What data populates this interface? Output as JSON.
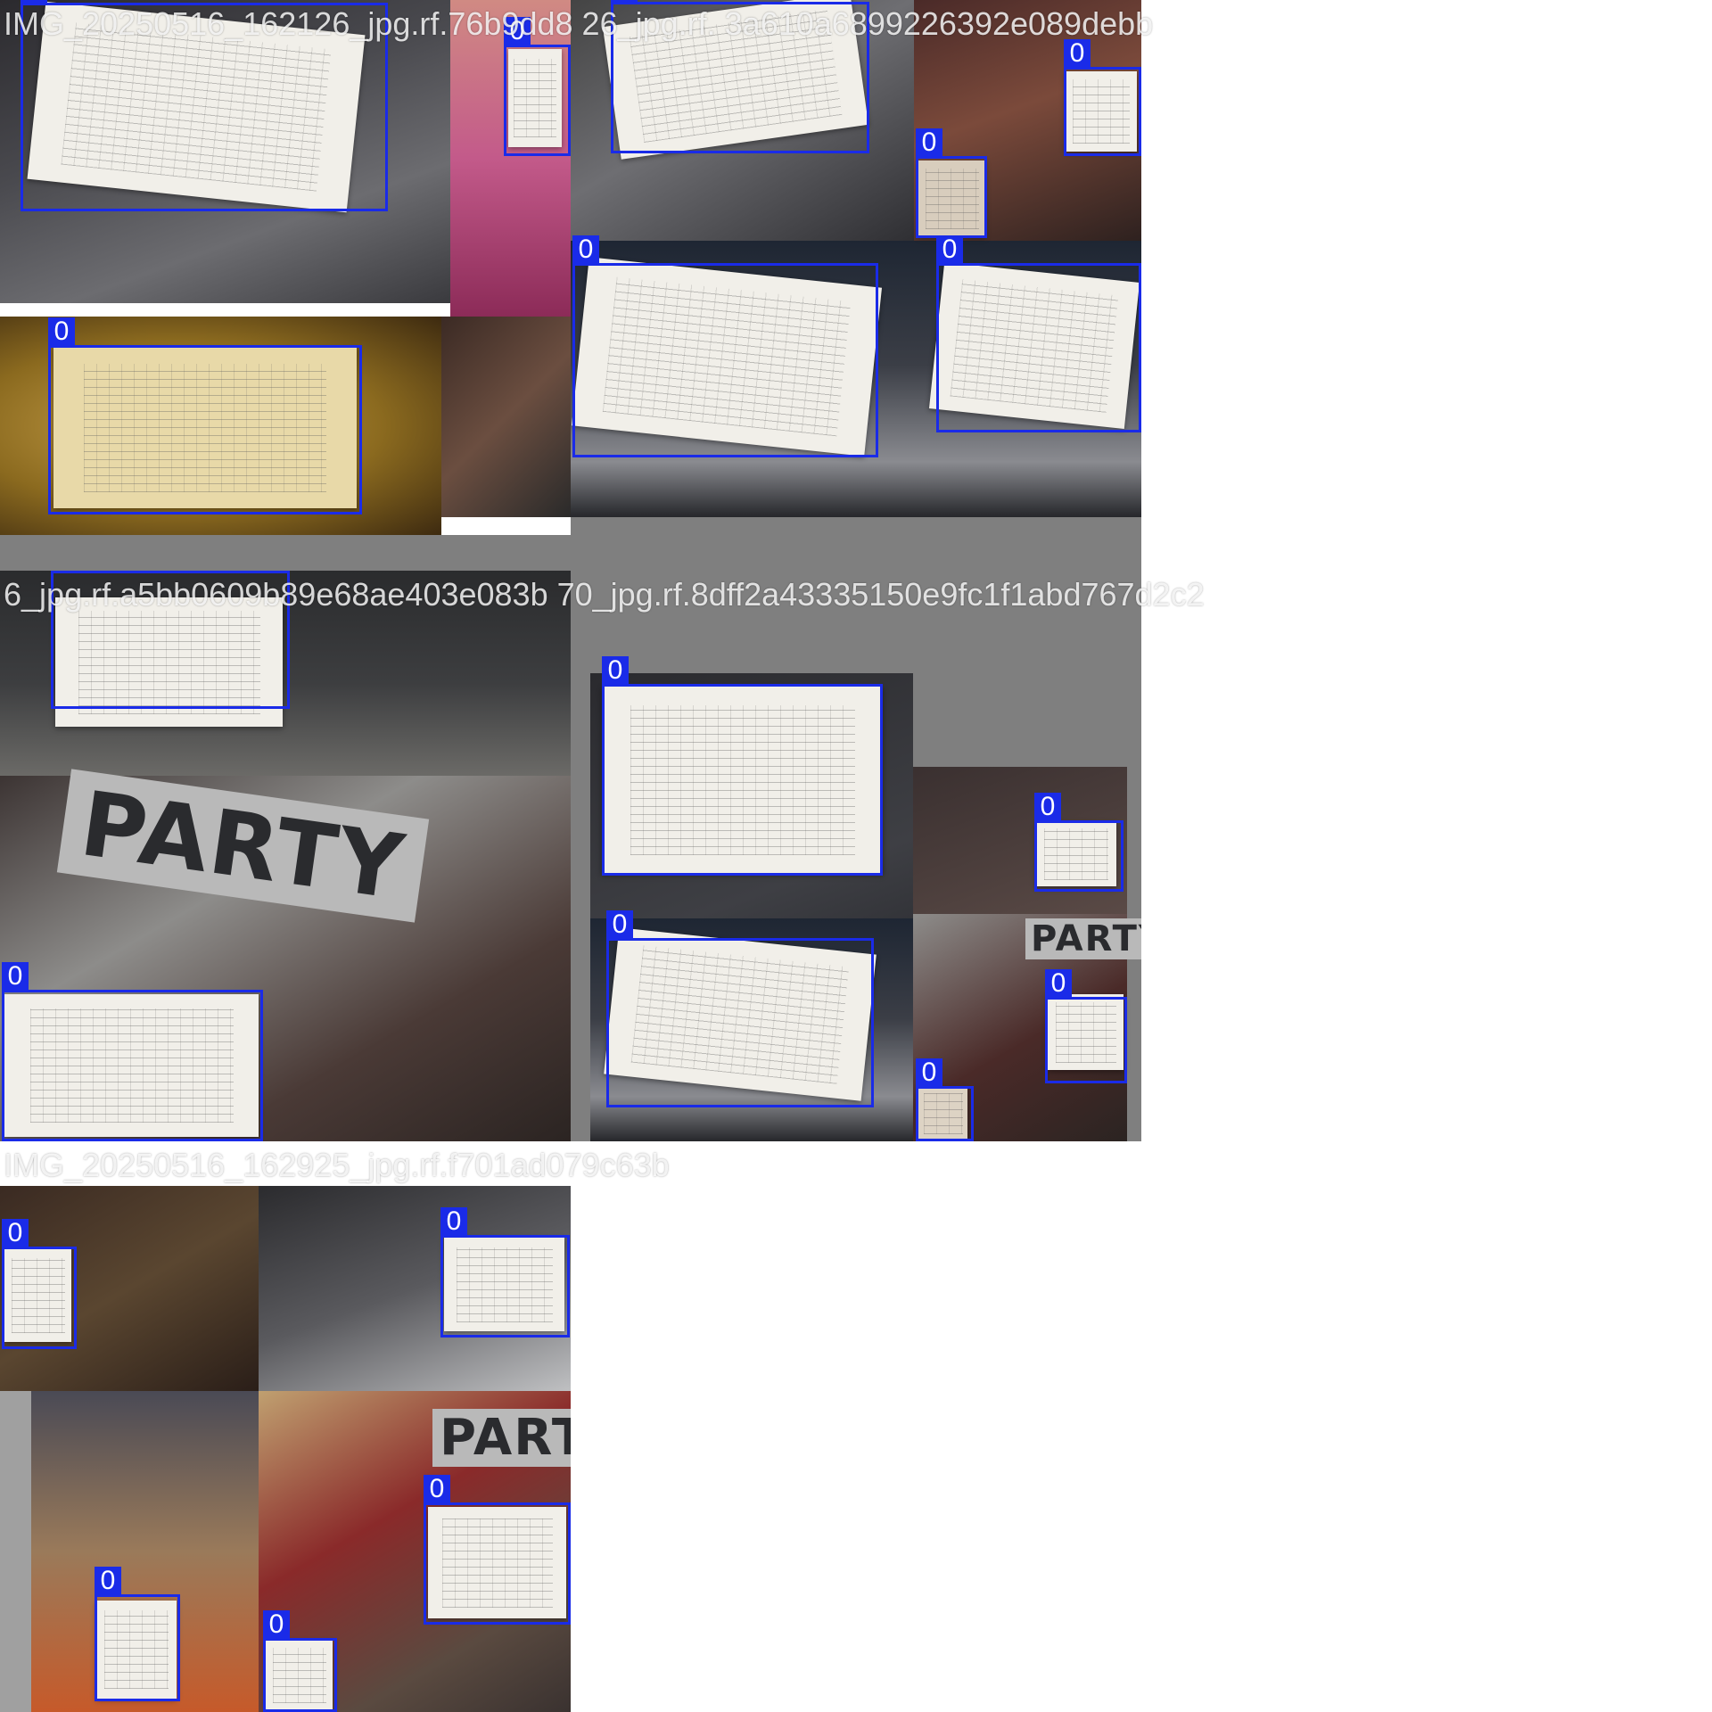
{
  "mosaic": {
    "tiles": [
      {
        "caption": "IMG_20250516_162126_jpg.rf.76b9dd8  26_jpg.rf.  3a610a6899226392e089debb",
        "boxes": [
          {
            "label": "0"
          },
          {
            "label": "0"
          },
          {
            "label": "0"
          },
          {
            "label": "0"
          },
          {
            "label": "0"
          },
          {
            "label": "0"
          },
          {
            "label": "0"
          }
        ]
      },
      {
        "caption": "6_jpg.rf.a5bb0609b89e68ae403e083b  70_jpg.rf.8dff2a43335150e9fc1f1abd767d2c2",
        "boxes": [
          {
            "label": "0"
          },
          {
            "label": "0"
          },
          {
            "label": "0"
          },
          {
            "label": "0"
          },
          {
            "label": "0"
          },
          {
            "label": "0"
          }
        ]
      },
      {
        "caption": "IMG_20250516_162925_jpg.rf.f701ad079c63b",
        "boxes": [
          {
            "label": "0"
          },
          {
            "label": "0"
          },
          {
            "label": "0"
          },
          {
            "label": "0"
          },
          {
            "label": "0"
          }
        ]
      }
    ],
    "shirt_print": "PARTY",
    "box_color": "#1a2be8"
  }
}
